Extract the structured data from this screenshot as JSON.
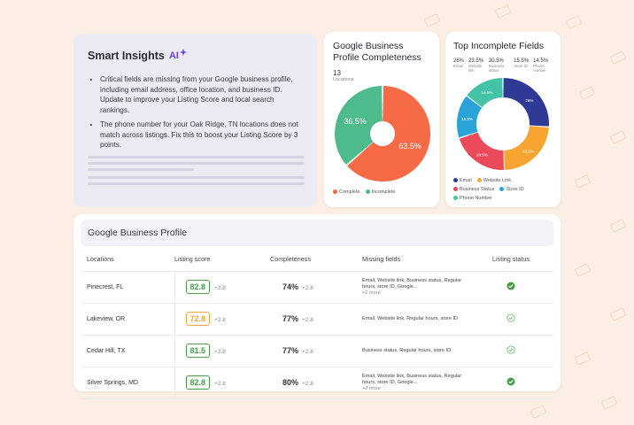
{
  "colors": {
    "complete": "#f66a46",
    "incomplete": "#4dbb8c",
    "email": "#2f3a95",
    "website": "#f7a532",
    "business_status": "#ea4a5a",
    "store_id": "#2aa3d8",
    "phone": "#45c3a7",
    "score_good": "#43a047",
    "score_warn": "#f2a53a"
  },
  "insights": {
    "title": "Smart Insights",
    "ai_label": "AI",
    "bullets": [
      "Critical fields are missing from your Google business profile, including email address, office location, and business ID. Update to improve your Listing Score and local search rankings.",
      "The phone number for your Oak Ridge, TN locations does not match across listings. Fix this to boost your Listing Score by 3 points."
    ]
  },
  "completeness": {
    "title": "Google Business Profile Completeness",
    "count": "13",
    "count_label": "Locations",
    "complete_pct": "63.5%",
    "incomplete_pct": "36.5%",
    "legend": [
      "Complete",
      "Incomplete"
    ]
  },
  "top_fields": {
    "title": "Top Incomplete Fields",
    "stats": [
      {
        "value": "26%",
        "label": "Email"
      },
      {
        "value": "23.5%",
        "label": "Website link"
      },
      {
        "value": "20.5%",
        "label": "Business status"
      },
      {
        "value": "15.5%",
        "label": "Store ID"
      },
      {
        "value": "14.5%",
        "label": "Phone number"
      }
    ],
    "legend": [
      "Email",
      "Website Link",
      "Business Status",
      "Store ID",
      "Phone Number"
    ]
  },
  "chart_data": [
    {
      "type": "pie",
      "categories": [
        "Complete",
        "Incomplete"
      ],
      "values": [
        63.5,
        36.5
      ]
    },
    {
      "type": "pie",
      "categories": [
        "Email",
        "Website Link",
        "Business Status",
        "Store ID",
        "Phone Number"
      ],
      "values": [
        26,
        23.5,
        20.5,
        15.5,
        14.5
      ]
    }
  ],
  "table": {
    "title": "Google Business Profile",
    "headers": [
      "Locations",
      "Listing score",
      "Completeness",
      "Missing fields",
      "Listing status"
    ],
    "rows": [
      {
        "location": "Pinecrest, FL",
        "score": "82.8",
        "score_delta": "+2.8",
        "completeness": "74%",
        "comp_delta": "+2.8",
        "missing": "Email, Website link, Business status, Regular hours, store ID, Google...",
        "more": "+2 more",
        "status": "complete"
      },
      {
        "location": "Lakeview, OR",
        "score": "72.8",
        "score_delta": "+2.8",
        "completeness": "77%",
        "comp_delta": "+2.8",
        "missing": "Email, Website link, Regular hours, store ID",
        "more": "",
        "status": "pending"
      },
      {
        "location": "Cedar Hill, TX",
        "score": "81.5",
        "score_delta": "+2.8",
        "completeness": "77%",
        "comp_delta": "+2.8",
        "missing": "Business status, Regular hours, store ID",
        "more": "",
        "status": "pending"
      },
      {
        "location": "Silver Springs, MD",
        "score": "82.8",
        "score_delta": "+2.8",
        "completeness": "80%",
        "comp_delta": "+2.8",
        "missing": "Email, Website link, Business status, Regular hours, store ID, Google...",
        "more": "+2 more",
        "status": "complete"
      }
    ]
  }
}
